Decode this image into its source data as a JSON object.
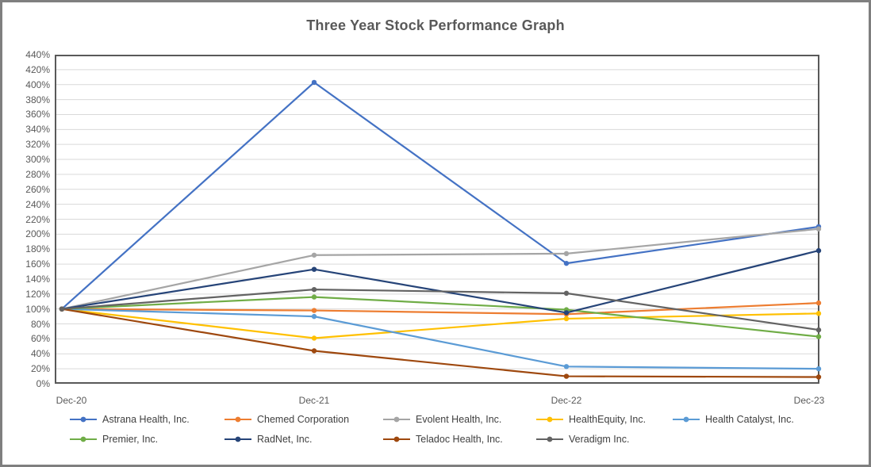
{
  "chart_data": {
    "type": "line",
    "title": "Three Year Stock Performance Graph",
    "categories": [
      "Dec-20",
      "Dec-21",
      "Dec-22",
      "Dec-23"
    ],
    "series": [
      {
        "name": "Astrana Health, Inc.",
        "color": "#4472C4",
        "values": [
          100,
          403,
          161,
          210
        ]
      },
      {
        "name": "Chemed Corporation",
        "color": "#ED7D31",
        "values": [
          100,
          98,
          93,
          108
        ]
      },
      {
        "name": "Evolent Health, Inc.",
        "color": "#A5A5A5",
        "values": [
          100,
          172,
          174,
          207
        ]
      },
      {
        "name": "HealthEquity, Inc.",
        "color": "#FFC000",
        "values": [
          100,
          61,
          87,
          94
        ]
      },
      {
        "name": "Health Catalyst, Inc.",
        "color": "#5B9BD5",
        "values": [
          100,
          90,
          23,
          20
        ]
      },
      {
        "name": "Premier, Inc.",
        "color": "#70AD47",
        "values": [
          100,
          116,
          99,
          63
        ]
      },
      {
        "name": "RadNet, Inc.",
        "color": "#264478",
        "values": [
          100,
          153,
          95,
          178
        ]
      },
      {
        "name": "Teladoc Health, Inc.",
        "color": "#9E480E",
        "values": [
          100,
          44,
          10,
          9
        ]
      },
      {
        "name": "Veradigm Inc.",
        "color": "#636363",
        "values": [
          100,
          126,
          121,
          72
        ]
      }
    ],
    "y_axis": {
      "min": 0,
      "max": 440,
      "step": 20,
      "tick_labels": [
        "0%",
        "20%",
        "40%",
        "60%",
        "80%",
        "100%",
        "120%",
        "140%",
        "160%",
        "180%",
        "200%",
        "220%",
        "240%",
        "260%",
        "280%",
        "300%",
        "320%",
        "340%",
        "360%",
        "380%",
        "400%",
        "420%",
        "440%"
      ]
    },
    "grid": true,
    "legend_position": "bottom",
    "styles": {
      "frame_border_color": "#7F7F7F",
      "plot_border_color": "#595959",
      "gridline_color": "#D9D9D9",
      "title_color": "#595959",
      "tick_label_color": "#595959",
      "legend_text_color": "#404040"
    }
  }
}
